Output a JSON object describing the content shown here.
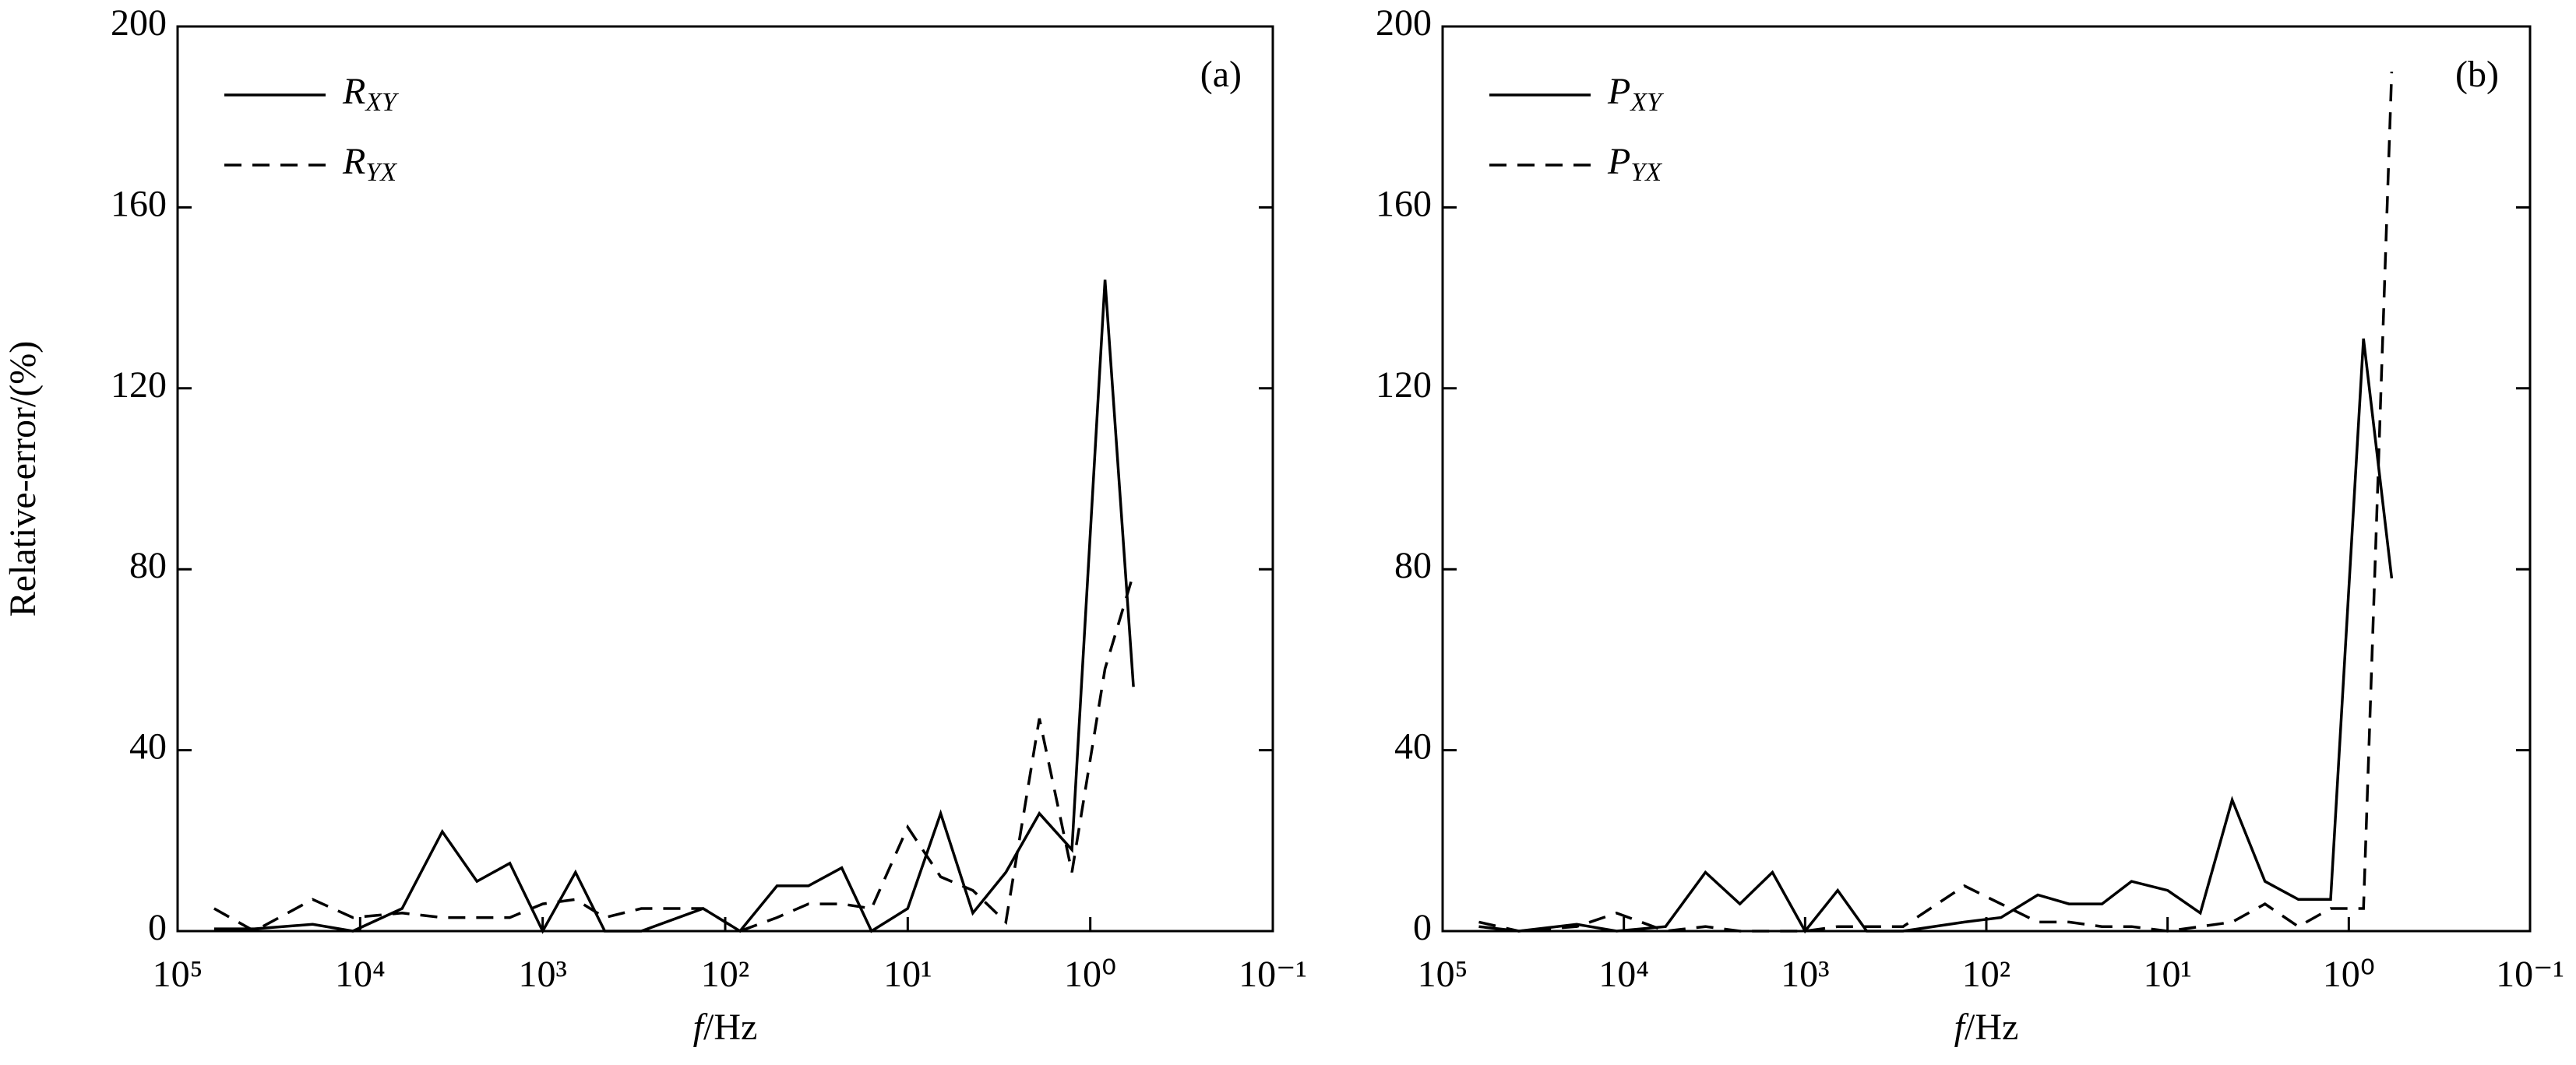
{
  "chart_data": [
    {
      "type": "line",
      "panel_label": "(a)",
      "ylabel": "Relative-error/(%)",
      "xlabel": "f/Hz",
      "xscale": "log",
      "legend": "upper left",
      "xlim": [
        100000,
        0.1
      ],
      "ylim": [
        0,
        200
      ],
      "xticks": [
        {
          "value": 100000,
          "label": "10⁵"
        },
        {
          "value": 10000,
          "label": "10⁴"
        },
        {
          "value": 1000,
          "label": "10³"
        },
        {
          "value": 100,
          "label": "10²"
        },
        {
          "value": 10,
          "label": "10¹"
        },
        {
          "value": 1,
          "label": "10⁰"
        },
        {
          "value": 0.1,
          "label": "10⁻¹"
        }
      ],
      "yticks": [
        0,
        40,
        80,
        120,
        160,
        200
      ],
      "x": [
        63096,
        38019,
        18197,
        10965,
        5888,
        3548,
        2291,
        1514,
        1000,
        661,
        457,
        288,
        132,
        83,
        52,
        35,
        23,
        15.8,
        10,
        6.6,
        4.4,
        2.9,
        1.9,
        1.26,
        0.83,
        0.58
      ],
      "series": [
        {
          "name": "RXY",
          "color": "#000000",
          "linestyle": "solid",
          "values": [
            0.5,
            0.5,
            1.5,
            0,
            5,
            22,
            11,
            15,
            0,
            13,
            0,
            0,
            5,
            0,
            10,
            10,
            14,
            0,
            5,
            26,
            4,
            13,
            26,
            18,
            144,
            54
          ]
        },
        {
          "name": "RYX",
          "color": "#000000",
          "linestyle": "dashed",
          "values": [
            5,
            0,
            7,
            3,
            4,
            3,
            3,
            3,
            6,
            7,
            3,
            5,
            5,
            0,
            3,
            6,
            6,
            5,
            23,
            12,
            9,
            2,
            47,
            13,
            58,
            79
          ]
        }
      ]
    },
    {
      "type": "line",
      "panel_label": "(b)",
      "xlabel": "f/Hz",
      "xscale": "log",
      "legend": "upper left",
      "xlim": [
        100000,
        0.1
      ],
      "ylim": [
        0,
        200
      ],
      "xticks": [
        {
          "value": 100000,
          "label": "10⁵"
        },
        {
          "value": 10000,
          "label": "10⁴"
        },
        {
          "value": 1000,
          "label": "10³"
        },
        {
          "value": 100,
          "label": "10²"
        },
        {
          "value": 10,
          "label": "10¹"
        },
        {
          "value": 1,
          "label": "10⁰"
        },
        {
          "value": 0.1,
          "label": "10⁻¹"
        }
      ],
      "yticks": [
        0,
        40,
        80,
        120,
        160,
        200
      ],
      "x": [
        63096,
        38019,
        18197,
        10965,
        5888,
        3548,
        2291,
        1514,
        1000,
        661,
        457,
        288,
        132,
        83,
        52,
        35,
        23,
        15.8,
        10,
        6.6,
        4.4,
        2.9,
        1.9,
        1.26,
        0.83,
        0.58
      ],
      "series": [
        {
          "name": "PXY",
          "color": "#000000",
          "linestyle": "solid",
          "values": [
            1,
            0,
            1.5,
            0,
            1,
            13,
            6,
            13,
            0,
            9,
            0,
            0,
            2,
            3,
            8,
            6,
            6,
            11,
            9,
            4,
            29,
            11,
            7,
            7,
            131,
            78
          ]
        },
        {
          "name": "PYX",
          "color": "#000000",
          "linestyle": "dashed",
          "values": [
            2,
            0,
            1,
            4,
            0,
            1,
            0,
            0,
            0,
            1,
            1,
            1,
            10,
            6,
            2,
            2,
            1,
            1,
            0,
            1,
            2,
            6,
            1,
            5,
            5,
            190
          ]
        }
      ]
    }
  ]
}
